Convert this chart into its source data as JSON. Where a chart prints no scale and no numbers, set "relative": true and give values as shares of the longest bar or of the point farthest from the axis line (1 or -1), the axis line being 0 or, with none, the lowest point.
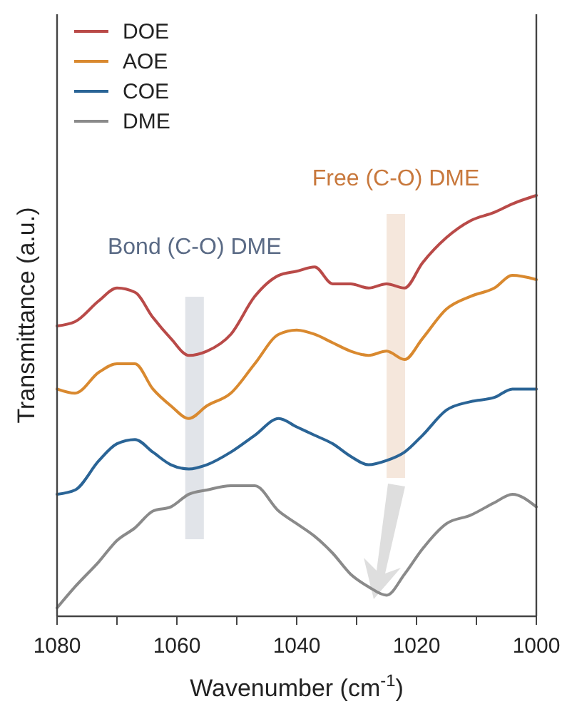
{
  "chart_data": {
    "type": "line",
    "relative": true,
    "xlabel": "Wavenumber (cm$^{-1}$)",
    "ylabel": "Transmittance (a.u.)",
    "x": [
      1080,
      1077,
      1073,
      1070,
      1067,
      1064,
      1061,
      1058,
      1055,
      1051,
      1047,
      1043,
      1040,
      1037,
      1034,
      1031,
      1028,
      1025,
      1022,
      1019,
      1015,
      1011,
      1007,
      1004,
      1000
    ],
    "xlim": [
      1080,
      1000
    ],
    "xticks": [
      1080,
      {
        "value": 1070,
        "label": null
      },
      1060,
      {
        "value": 1050,
        "label": null
      },
      1040,
      {
        "value": 1030,
        "label": null
      },
      1020,
      {
        "value": 1010,
        "label": null
      },
      1000
    ],
    "series": [
      {
        "name": "DOE",
        "color": "#b94a48",
        "values": [
          0.69,
          0.7,
          0.75,
          0.78,
          0.77,
          0.71,
          0.66,
          0.62,
          0.63,
          0.67,
          0.76,
          0.81,
          0.82,
          0.83,
          0.79,
          0.79,
          0.78,
          0.79,
          0.78,
          0.84,
          0.9,
          0.94,
          0.96,
          0.98,
          1
        ]
      },
      {
        "name": "AOE",
        "color": "#d9892f",
        "values": [
          0.54,
          0.53,
          0.58,
          0.6,
          0.6,
          0.54,
          0.5,
          0.47,
          0.5,
          0.53,
          0.6,
          0.67,
          0.68,
          0.67,
          0.65,
          0.63,
          0.62,
          0.63,
          0.61,
          0.66,
          0.73,
          0.76,
          0.78,
          0.81,
          0.8
        ]
      },
      {
        "name": "COE",
        "color": "#2a6496",
        "values": [
          0.29,
          0.3,
          0.37,
          0.41,
          0.42,
          0.39,
          0.36,
          0.35,
          0.36,
          0.39,
          0.43,
          0.47,
          0.45,
          0.43,
          0.41,
          0.38,
          0.36,
          0.37,
          0.39,
          0.43,
          0.49,
          0.51,
          0.52,
          0.54,
          0.54
        ]
      },
      {
        "name": "DME",
        "color": "#8a8a8a",
        "values": [
          0.02,
          0.07,
          0.13,
          0.18,
          0.21,
          0.25,
          0.26,
          0.29,
          0.3,
          0.31,
          0.31,
          0.25,
          0.22,
          0.19,
          0.15,
          0.1,
          0.07,
          0.05,
          0.1,
          0.16,
          0.22,
          0.24,
          0.27,
          0.29,
          0.26
        ]
      }
    ],
    "bands": [
      {
        "axis": "x",
        "from": 1058.6,
        "to": 1055.5,
        "label": "Bond (C-O) DME",
        "color": "#5a6a85"
      },
      {
        "axis": "x",
        "from": 1025,
        "to": 1021.9,
        "label": "Free (C-O) DME",
        "color": "#c8783c"
      }
    ],
    "legend": "top left",
    "grid": false,
    "line_style": "solid"
  }
}
